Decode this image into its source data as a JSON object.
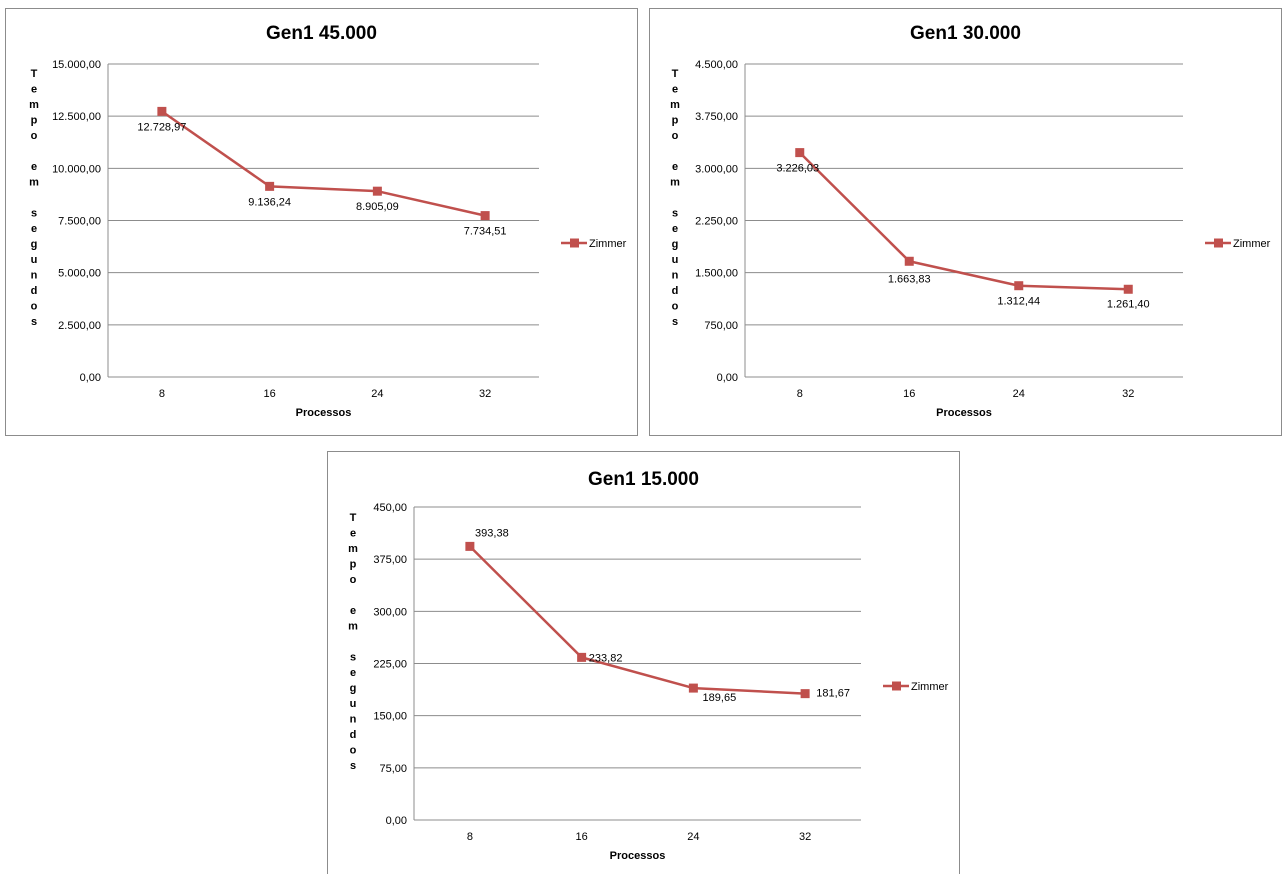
{
  "chart_data": [
    {
      "type": "line",
      "title": "Gen1 45.000",
      "xlabel": "Processos",
      "ylabel": "Tempo em segundos",
      "categories": [
        "8",
        "16",
        "24",
        "32"
      ],
      "series": [
        {
          "name": "Zimmer",
          "color": "#c0504d",
          "values": [
            12728.97,
            9136.24,
            8905.09,
            7734.51
          ]
        }
      ],
      "data_labels": [
        "12.728,97",
        "9.136,24",
        "8.905,09",
        "7.734,51"
      ],
      "ylim": [
        0,
        15000
      ],
      "yticks": [
        "0,00",
        "2.500,00",
        "5.000,00",
        "7.500,00",
        "10.000,00",
        "12.500,00",
        "15.000,00"
      ],
      "grid": true,
      "legend": "right"
    },
    {
      "type": "line",
      "title": "Gen1 30.000",
      "xlabel": "Processos",
      "ylabel": "Tempo em segundos",
      "categories": [
        "8",
        "16",
        "24",
        "32"
      ],
      "series": [
        {
          "name": "Zimmer",
          "color": "#c0504d",
          "values": [
            3226.03,
            1663.83,
            1312.44,
            1261.4
          ]
        }
      ],
      "data_labels": [
        "3.226,03",
        "1.663,83",
        "1.312,44",
        "1.261,40"
      ],
      "ylim": [
        0,
        4500
      ],
      "yticks": [
        "0,00",
        "750,00",
        "1.500,00",
        "2.250,00",
        "3.000,00",
        "3.750,00",
        "4.500,00"
      ],
      "grid": true,
      "legend": "right"
    },
    {
      "type": "line",
      "title": "Gen1 15.000",
      "xlabel": "Processos",
      "ylabel": "Tempo em segundos",
      "categories": [
        "8",
        "16",
        "24",
        "32"
      ],
      "series": [
        {
          "name": "Zimmer",
          "color": "#c0504d",
          "values": [
            393.38,
            233.82,
            189.65,
            181.67
          ]
        }
      ],
      "data_labels": [
        "393,38",
        "233,82",
        "189,65",
        "181,67"
      ],
      "ylim": [
        0,
        450
      ],
      "yticks": [
        "0,00",
        "75,00",
        "150,00",
        "225,00",
        "300,00",
        "375,00",
        "450,00"
      ],
      "grid": true,
      "legend": "right"
    }
  ]
}
